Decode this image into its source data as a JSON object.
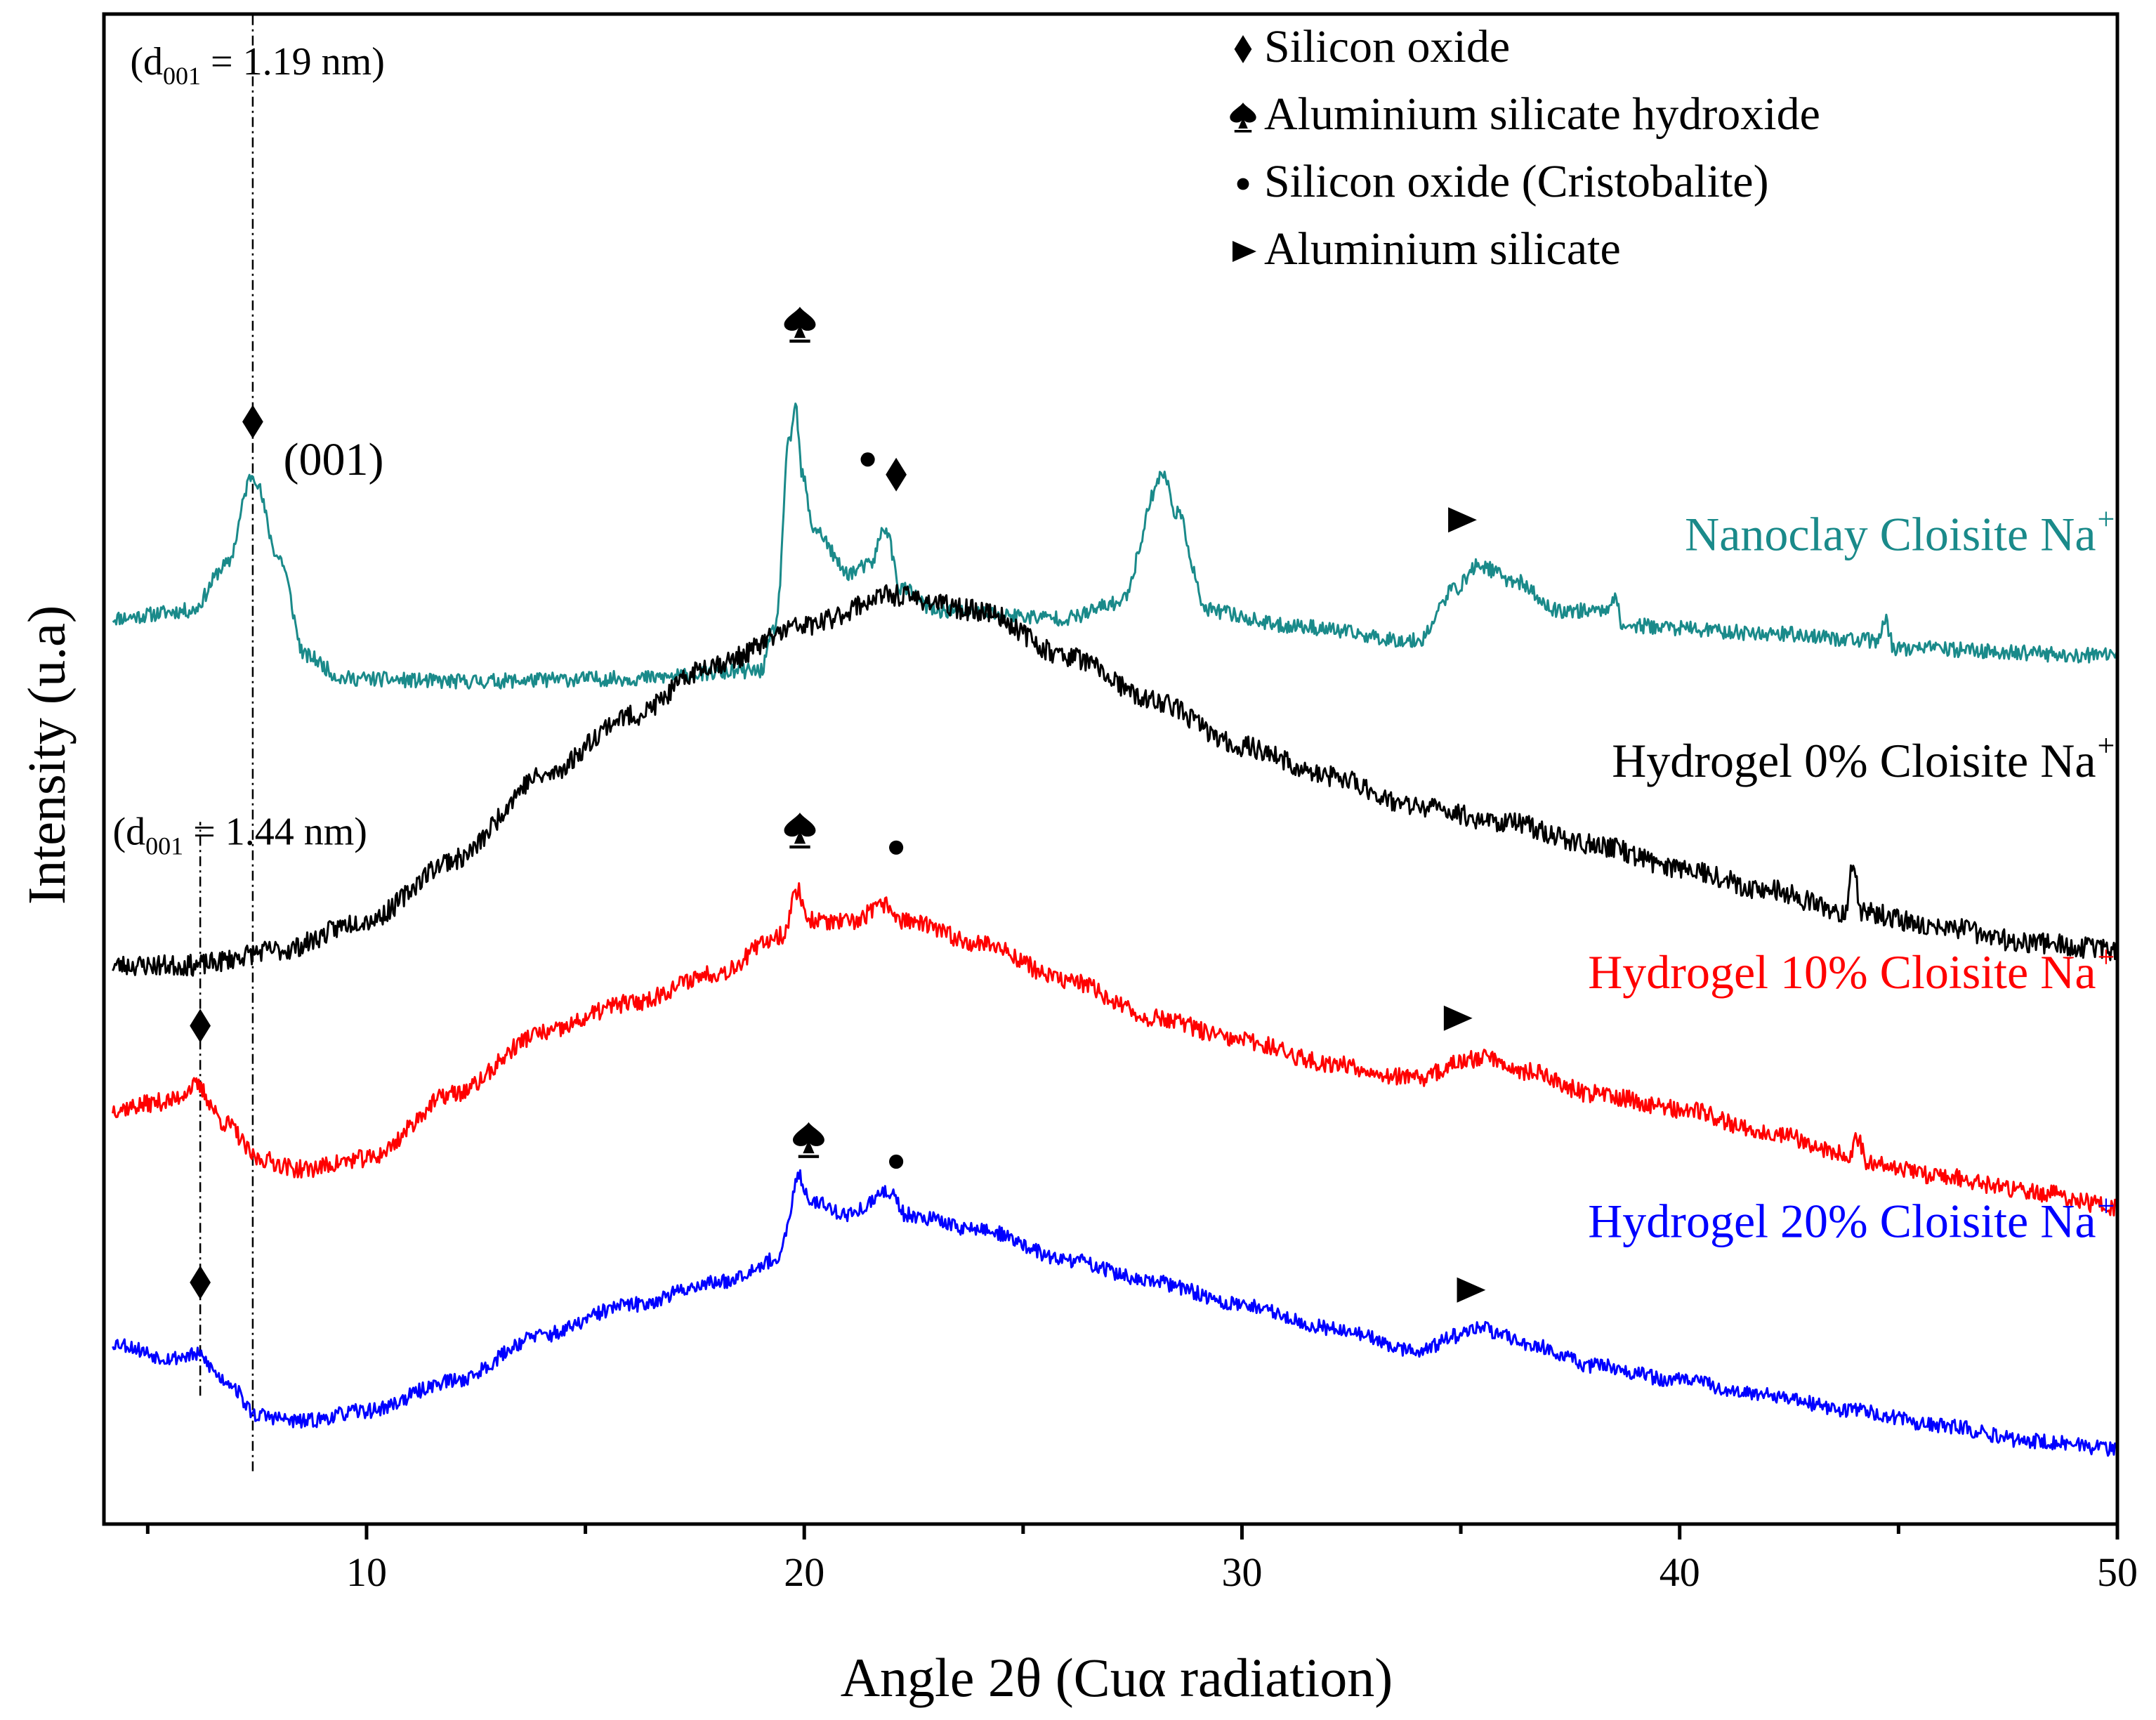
{
  "chart_data": {
    "type": "line",
    "title": "",
    "xlabel": "Angle 2θ  (Cuα radiation)",
    "ylabel": "Intensity (u.a)",
    "xlim": [
      4,
      50
    ],
    "ylim": [
      0,
      10
    ],
    "xticks": [
      10,
      20,
      30,
      40,
      50
    ],
    "y_ticks_shown": false,
    "grid": false,
    "legend": {
      "placement": "top-right",
      "entries": [
        {
          "symbol": "diamond",
          "label": "Silicon oxide"
        },
        {
          "symbol": "spade",
          "label": "Aluminium silicate hydroxide"
        },
        {
          "symbol": "dot",
          "label": "Silicon oxide (Cristobalite)"
        },
        {
          "symbol": "triangle",
          "label": "Aluminium silicate"
        }
      ]
    },
    "series": [
      {
        "name": "Nanoclay Cloisite Na",
        "label_superscript": "+",
        "color": "#1a8a8a",
        "noise": 0.05,
        "seed": 11,
        "points": [
          [
            4.2,
            6.0
          ],
          [
            6.0,
            6.05
          ],
          [
            6.8,
            6.35
          ],
          [
            7.4,
            6.95
          ],
          [
            8.0,
            6.4
          ],
          [
            8.6,
            5.75
          ],
          [
            9.5,
            5.6
          ],
          [
            12,
            5.58
          ],
          [
            16,
            5.6
          ],
          [
            19.0,
            5.65
          ],
          [
            19.35,
            5.95
          ],
          [
            19.65,
            7.15
          ],
          [
            19.8,
            7.4
          ],
          [
            19.95,
            6.95
          ],
          [
            20.2,
            6.6
          ],
          [
            21.0,
            6.3
          ],
          [
            21.5,
            6.35
          ],
          [
            21.85,
            6.6
          ],
          [
            22.2,
            6.2
          ],
          [
            23,
            6.05
          ],
          [
            26,
            6.0
          ],
          [
            27.2,
            6.1
          ],
          [
            28.2,
            6.95
          ],
          [
            28.5,
            6.7
          ],
          [
            29.2,
            6.05
          ],
          [
            31,
            5.95
          ],
          [
            34,
            5.85
          ],
          [
            34.9,
            6.2
          ],
          [
            35.4,
            6.35
          ],
          [
            36.2,
            6.25
          ],
          [
            37.2,
            6.05
          ],
          [
            38.3,
            6.05
          ],
          [
            38.5,
            6.15
          ],
          [
            38.7,
            5.95
          ],
          [
            42,
            5.9
          ],
          [
            44.5,
            5.85
          ],
          [
            44.7,
            5.98
          ],
          [
            44.9,
            5.8
          ],
          [
            50,
            5.75
          ]
        ]
      },
      {
        "name": "Hydrogel   0% Cloisite Na",
        "label_superscript": "+",
        "color": "#000000",
        "noise": 0.07,
        "seed": 23,
        "points": [
          [
            4.2,
            3.7
          ],
          [
            6,
            3.7
          ],
          [
            8,
            3.8
          ],
          [
            10,
            4.0
          ],
          [
            12,
            4.4
          ],
          [
            14,
            4.95
          ],
          [
            16,
            5.35
          ],
          [
            18,
            5.7
          ],
          [
            20,
            5.95
          ],
          [
            22,
            6.15
          ],
          [
            24,
            6.05
          ],
          [
            26,
            5.75
          ],
          [
            28,
            5.45
          ],
          [
            30,
            5.15
          ],
          [
            32,
            4.95
          ],
          [
            34,
            4.75
          ],
          [
            36,
            4.65
          ],
          [
            38,
            4.5
          ],
          [
            40,
            4.35
          ],
          [
            42,
            4.2
          ],
          [
            43.8,
            4.05
          ],
          [
            43.95,
            4.4
          ],
          [
            44.15,
            4.05
          ],
          [
            46,
            3.95
          ],
          [
            48,
            3.85
          ],
          [
            50,
            3.8
          ]
        ]
      },
      {
        "name": "Hydrogel 10% Cloisite Na",
        "label_superscript": "+",
        "color": "#ff0000",
        "noise": 0.06,
        "seed": 37,
        "points": [
          [
            4.2,
            2.75
          ],
          [
            5.5,
            2.8
          ],
          [
            6.1,
            2.9
          ],
          [
            6.8,
            2.65
          ],
          [
            7.5,
            2.42
          ],
          [
            8.5,
            2.35
          ],
          [
            10,
            2.42
          ],
          [
            12,
            2.85
          ],
          [
            14,
            3.25
          ],
          [
            16,
            3.45
          ],
          [
            18,
            3.65
          ],
          [
            19.5,
            3.9
          ],
          [
            19.85,
            4.2
          ],
          [
            20.1,
            4.0
          ],
          [
            21,
            3.98
          ],
          [
            21.9,
            4.1
          ],
          [
            22.2,
            4.0
          ],
          [
            24,
            3.85
          ],
          [
            26,
            3.6
          ],
          [
            28,
            3.35
          ],
          [
            30,
            3.2
          ],
          [
            32,
            3.05
          ],
          [
            34,
            2.95
          ],
          [
            35,
            3.05
          ],
          [
            35.5,
            3.1
          ],
          [
            36.5,
            3.0
          ],
          [
            38,
            2.85
          ],
          [
            40,
            2.75
          ],
          [
            42,
            2.6
          ],
          [
            43.9,
            2.45
          ],
          [
            44.05,
            2.55
          ],
          [
            44.3,
            2.4
          ],
          [
            46,
            2.3
          ],
          [
            48,
            2.2
          ],
          [
            50,
            2.1
          ]
        ]
      },
      {
        "name": "Hydrogel 20% Cloisite Na",
        "label_superscript": "+",
        "color": "#0000ff",
        "noise": 0.05,
        "seed": 53,
        "points": [
          [
            4.2,
            1.2
          ],
          [
            5.5,
            1.1
          ],
          [
            6.1,
            1.12
          ],
          [
            6.8,
            0.95
          ],
          [
            7.5,
            0.72
          ],
          [
            8.5,
            0.68
          ],
          [
            10,
            0.75
          ],
          [
            12,
            0.95
          ],
          [
            14,
            1.25
          ],
          [
            16,
            1.45
          ],
          [
            18,
            1.6
          ],
          [
            19.4,
            1.75
          ],
          [
            19.9,
            2.3
          ],
          [
            20.1,
            2.15
          ],
          [
            21,
            2.05
          ],
          [
            22.0,
            2.2
          ],
          [
            22.3,
            2.05
          ],
          [
            24,
            1.95
          ],
          [
            26,
            1.75
          ],
          [
            28,
            1.6
          ],
          [
            30,
            1.45
          ],
          [
            32,
            1.3
          ],
          [
            34,
            1.15
          ],
          [
            35,
            1.25
          ],
          [
            35.4,
            1.3
          ],
          [
            36.5,
            1.2
          ],
          [
            38,
            1.05
          ],
          [
            40,
            0.95
          ],
          [
            42,
            0.85
          ],
          [
            44,
            0.75
          ],
          [
            46,
            0.65
          ],
          [
            48,
            0.55
          ],
          [
            50,
            0.5
          ]
        ]
      }
    ],
    "vertical_lines": [
      {
        "x": 7.4,
        "y_from": 0.35,
        "y_to": 10.0,
        "style": "dash-dot"
      },
      {
        "x": 6.2,
        "y_from": 0.85,
        "y_to": 4.65,
        "style": "dash-dot"
      }
    ],
    "annotations": [
      {
        "type": "text",
        "id": "d-spacing-1",
        "x": 4.6,
        "y": 9.6,
        "prefix": "(d",
        "subscript": "001",
        "suffix": " = 1.19 nm)"
      },
      {
        "type": "text",
        "id": "d-spacing-2",
        "x": 4.2,
        "y": 4.5,
        "prefix": "(d",
        "subscript": "001",
        "suffix": " = 1.44 nm)"
      },
      {
        "type": "text",
        "id": "plane-001",
        "x": 8.1,
        "y": 6.95,
        "text": "(001)"
      },
      {
        "type": "marker",
        "symbol": "diamond",
        "x": 7.4,
        "y": 7.3
      },
      {
        "type": "marker",
        "symbol": "spade",
        "x": 19.9,
        "y": 7.95
      },
      {
        "type": "marker",
        "symbol": "dot",
        "x": 21.45,
        "y": 7.05
      },
      {
        "type": "marker",
        "symbol": "diamond",
        "x": 22.1,
        "y": 6.95
      },
      {
        "type": "marker",
        "symbol": "triangle",
        "x": 35.0,
        "y": 6.65
      },
      {
        "type": "marker",
        "symbol": "spade",
        "x": 19.9,
        "y": 4.6
      },
      {
        "type": "marker",
        "symbol": "dot",
        "x": 22.1,
        "y": 4.48
      },
      {
        "type": "marker",
        "symbol": "diamond",
        "x": 6.2,
        "y": 3.3
      },
      {
        "type": "marker",
        "symbol": "triangle",
        "x": 34.9,
        "y": 3.35
      },
      {
        "type": "marker",
        "symbol": "spade",
        "x": 20.1,
        "y": 2.55
      },
      {
        "type": "marker",
        "symbol": "dot",
        "x": 22.1,
        "y": 2.4
      },
      {
        "type": "marker",
        "symbol": "diamond",
        "x": 6.2,
        "y": 1.6
      },
      {
        "type": "marker",
        "symbol": "triangle",
        "x": 35.2,
        "y": 1.55
      }
    ],
    "series_labels": [
      {
        "series": 0,
        "x": 49.8,
        "y": 6.45
      },
      {
        "series": 1,
        "x": 49.8,
        "y": 4.95
      },
      {
        "series": 2,
        "x": 49.8,
        "y": 3.55
      },
      {
        "series": 3,
        "x": 49.8,
        "y": 1.9
      }
    ]
  }
}
